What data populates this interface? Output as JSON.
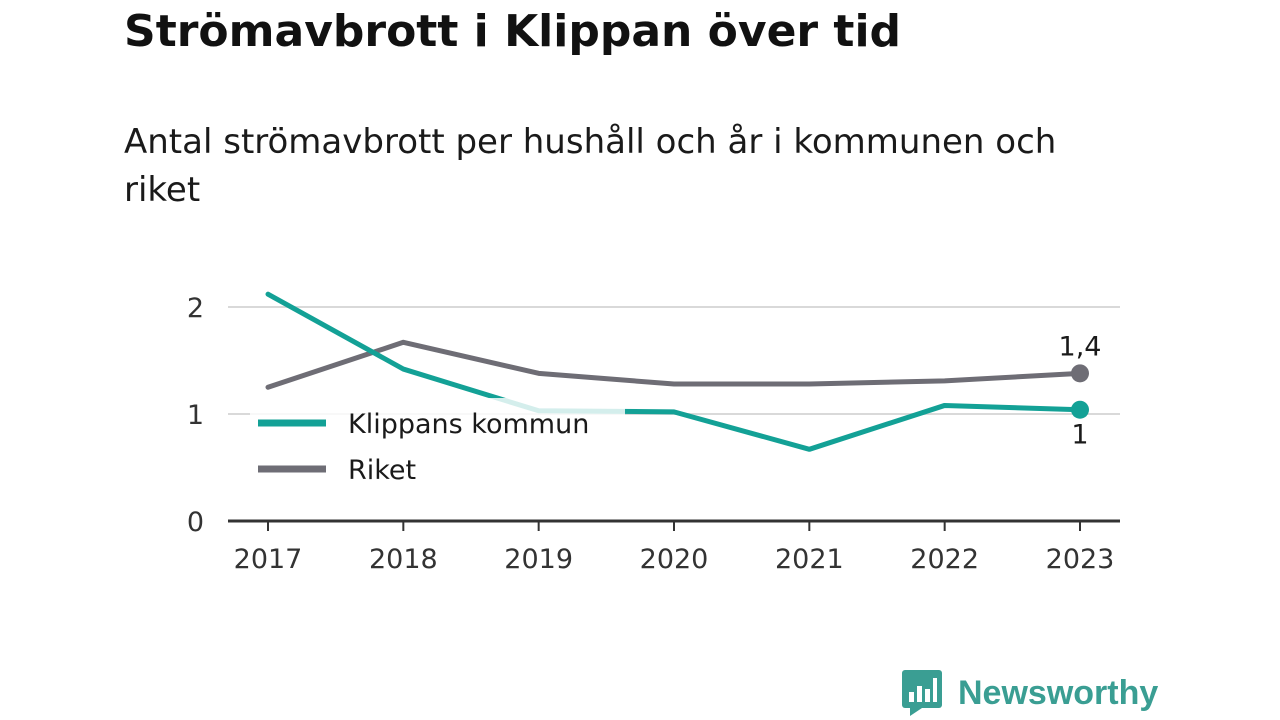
{
  "title": "Strömavbrott i Klippan över tid",
  "subtitle": "Antal strömavbrott per hushåll och år i kommunen och riket",
  "brand": {
    "name": "Newsworthy",
    "color": "#3a9e93"
  },
  "chart_data": {
    "type": "line",
    "title": "Strömavbrott i Klippan över tid",
    "subtitle": "Antal strömavbrott per hushåll och år i kommunen och riket",
    "xlabel": "",
    "ylabel": "",
    "x": [
      "2017",
      "2018",
      "2019",
      "2020",
      "2021",
      "2022",
      "2023"
    ],
    "ylim": [
      0,
      2.1
    ],
    "yticks": [
      {
        "value": 0,
        "label": "0"
      },
      {
        "value": 1,
        "label": "1"
      },
      {
        "value": 2,
        "label": "2"
      }
    ],
    "grid": true,
    "legend_position": "center-left",
    "series": [
      {
        "name": "Klippans kommun",
        "color": "#13a196",
        "values": [
          2.12,
          1.42,
          1.03,
          1.02,
          0.67,
          1.08,
          1.04
        ],
        "end_label": "1"
      },
      {
        "name": "Riket",
        "color": "#6e6d75",
        "values": [
          1.25,
          1.67,
          1.38,
          1.28,
          1.28,
          1.31,
          1.38
        ],
        "end_label": "1,4"
      }
    ]
  }
}
